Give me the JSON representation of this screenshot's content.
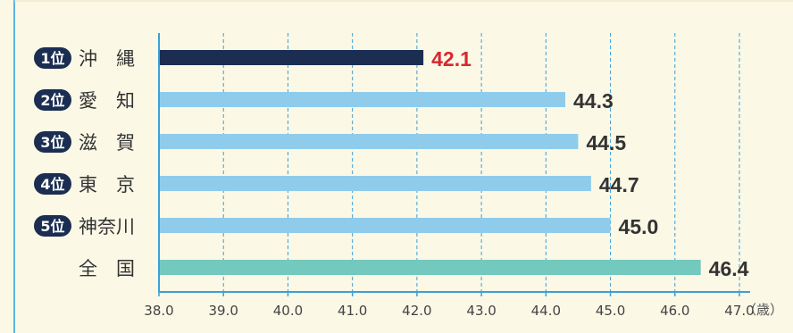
{
  "chart_data": {
    "type": "bar",
    "orientation": "horizontal",
    "categories": [
      "沖　縄",
      "愛　知",
      "滋　賀",
      "東　京",
      "神奈川",
      "全　国"
    ],
    "ranks": [
      "1位",
      "2位",
      "3位",
      "4位",
      "5位",
      ""
    ],
    "values": [
      42.1,
      44.3,
      44.5,
      44.7,
      45.0,
      46.4
    ],
    "value_labels": [
      "42.1",
      "44.3",
      "44.5",
      "44.7",
      "45.0",
      "46.4"
    ],
    "bar_colors": [
      "#1b2e52",
      "#8fccec",
      "#8fccec",
      "#8fccec",
      "#8fccec",
      "#73c9bd"
    ],
    "value_label_colors": [
      "#d7282f",
      "#333333",
      "#333333",
      "#333333",
      "#333333",
      "#333333"
    ],
    "xlim": [
      38.0,
      47.0
    ],
    "xticks": [
      "38.0",
      "39.0",
      "40.0",
      "41.0",
      "42.0",
      "43.0",
      "44.0",
      "45.0",
      "46.0",
      "47.0"
    ],
    "unit_label": "（歳）",
    "grid": "vertical dashed",
    "colors": {
      "background": "#fbf8e6",
      "axis": "#3aa0d8",
      "rank_badge": "#1b2e52",
      "frame": "#5bb4e4"
    }
  }
}
